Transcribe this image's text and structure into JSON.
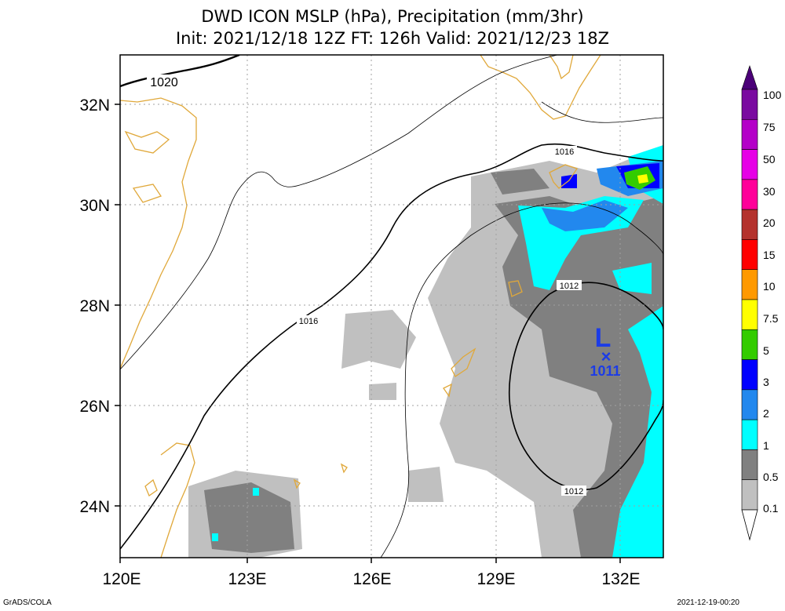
{
  "title": {
    "line1": "DWD ICON MSLP (hPa), Precipitation (mm/3hr)",
    "line2": "Init: 2021/12/18 12Z  FT: 126h  Valid: 2021/12/23 18Z"
  },
  "map": {
    "lon_range": [
      120,
      133
    ],
    "lat_range": [
      23,
      33
    ],
    "lon_ticks": [
      "120E",
      "123E",
      "126E",
      "129E",
      "132E"
    ],
    "lat_ticks": [
      "24N",
      "26N",
      "28N",
      "30N",
      "32N"
    ],
    "isobar_labels": [
      "1020",
      "1016",
      "1016",
      "1012",
      "1012"
    ],
    "low_center": {
      "symbol": "L",
      "marker": "×",
      "pressure": "1011",
      "lon": 131.6,
      "lat": 27.0,
      "color": "#1c3ce6"
    },
    "coastline_color": "#e0a83a"
  },
  "colorbar": {
    "labels": [
      "100",
      "75",
      "50",
      "30",
      "20",
      "15",
      "10",
      "7.5",
      "5",
      "3",
      "2",
      "1",
      "0.5",
      "0.1"
    ],
    "colors": [
      "#7a0aa0",
      "#b400c8",
      "#e600e6",
      "#ff0099",
      "#b4322d",
      "#ff0000",
      "#ff9900",
      "#ffff00",
      "#33cc00",
      "#0000ff",
      "#2288ee",
      "#00ffff",
      "#808080",
      "#c0c0c0"
    ],
    "top_arrow_color": "#4b0078"
  },
  "footer": {
    "left": "GrADS/COLA",
    "right": "2021-12-19-00:20"
  }
}
